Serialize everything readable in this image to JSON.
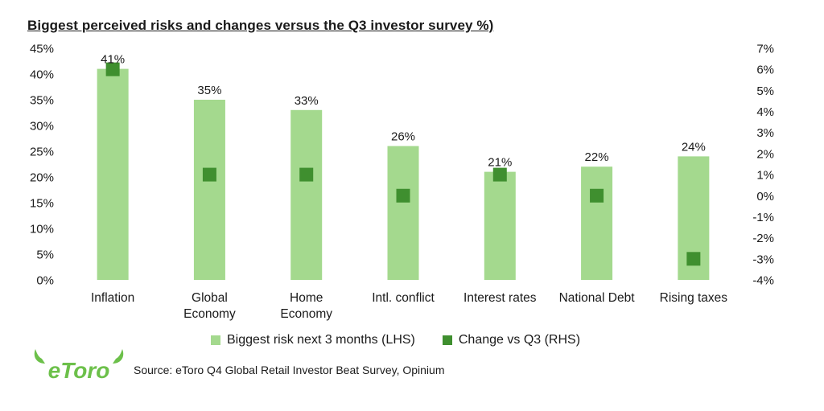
{
  "title": "Biggest perceived risks and changes versus the Q3 investor survey %)",
  "colors": {
    "bar": "#a4d98e",
    "marker": "#3f8f2f",
    "logo": "#6cc04a"
  },
  "legend": {
    "bar_label": "Biggest risk next 3 months (LHS)",
    "marker_label": "Change vs Q3 (RHS)"
  },
  "logo": {
    "icon": "etoro-logo",
    "text": "eToro"
  },
  "source": "Source: eToro Q4 Global Retail Investor Beat Survey, Opinium",
  "chart_data": {
    "type": "bar",
    "categories": [
      [
        "Inflation"
      ],
      [
        "Global",
        "Economy"
      ],
      [
        "Home",
        "Economy"
      ],
      [
        "Intl. conflict"
      ],
      [
        "Interest rates"
      ],
      [
        "National Debt"
      ],
      [
        "Rising taxes"
      ]
    ],
    "series": [
      {
        "name": "Biggest risk next 3 months (LHS)",
        "type": "bar",
        "axis": "left",
        "values": [
          41,
          35,
          33,
          26,
          21,
          22,
          24
        ]
      },
      {
        "name": "Change vs Q3 (RHS)",
        "type": "marker",
        "axis": "right",
        "values": [
          6,
          1,
          1,
          0,
          1,
          0,
          -3
        ]
      }
    ],
    "data_labels": [
      "41%",
      "35%",
      "33%",
      "26%",
      "21%",
      "22%",
      "24%"
    ],
    "left_axis": {
      "ylim": [
        0,
        45
      ],
      "ticks": [
        "0%",
        "5%",
        "10%",
        "15%",
        "20%",
        "25%",
        "30%",
        "35%",
        "40%",
        "45%"
      ]
    },
    "right_axis": {
      "ylim": [
        -4,
        7
      ],
      "ticks": [
        "-4%",
        "-3%",
        "-2%",
        "-1%",
        "0%",
        "1%",
        "2%",
        "3%",
        "4%",
        "5%",
        "6%",
        "7%"
      ]
    },
    "grid": false,
    "legend_position": "bottom"
  }
}
